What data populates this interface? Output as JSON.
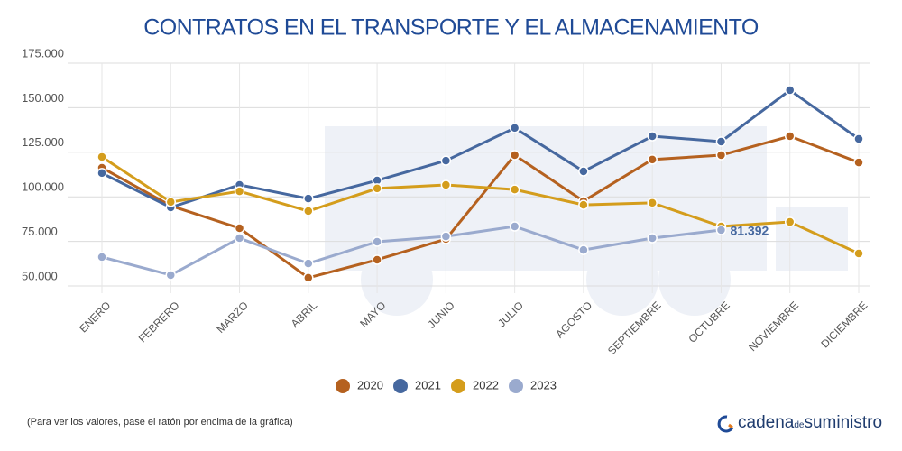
{
  "chart_data": {
    "type": "line",
    "title": "CONTRATOS EN EL TRANSPORTE Y EL ALMACENAMIENTO",
    "categories": [
      "ENERO",
      "FEBRERO",
      "MARZO",
      "ABRIL",
      "MAYO",
      "JUNIO",
      "JULIO",
      "AGOSTO",
      "SEPTIEMBRE",
      "OCTUBRE",
      "NOVIEMBRE",
      "DICIEMBRE"
    ],
    "series": [
      {
        "name": "2020",
        "color": "#b5611f",
        "values": [
          116300,
          95000,
          82400,
          54600,
          64700,
          76300,
          123400,
          97600,
          120900,
          123400,
          134000,
          119300
        ]
      },
      {
        "name": "2021",
        "color": "#46689f",
        "values": [
          113300,
          94000,
          106700,
          99000,
          109200,
          120300,
          138600,
          114300,
          134000,
          131000,
          159800,
          132500
        ]
      },
      {
        "name": "2022",
        "color": "#d49d1c",
        "values": [
          122400,
          97100,
          103100,
          92000,
          104700,
          106700,
          104100,
          95500,
          96600,
          83400,
          85900,
          68200
        ]
      },
      {
        "name": "2023",
        "color": "#9aaace",
        "values": [
          66200,
          56100,
          76800,
          62600,
          74800,
          77800,
          83400,
          70200,
          76800,
          81392,
          null,
          null
        ],
        "value_labels": [
          null,
          null,
          null,
          null,
          null,
          null,
          null,
          null,
          null,
          "81.392",
          null,
          null
        ]
      }
    ],
    "ylim": [
      50000,
      175000
    ],
    "yticks": [
      {
        "value": 50000,
        "label": "50.000"
      },
      {
        "value": 75000,
        "label": "75.000"
      },
      {
        "value": 100000,
        "label": "100.000"
      },
      {
        "value": 125000,
        "label": "125.000"
      },
      {
        "value": 150000,
        "label": "150.000"
      },
      {
        "value": 175000,
        "label": "175.000"
      }
    ],
    "grid": true,
    "legend": "bottom",
    "note": "(Para ver los valores, pase el ratón por encima de la gráfica)",
    "logo": [
      "cadena",
      "de",
      "suministro"
    ]
  }
}
